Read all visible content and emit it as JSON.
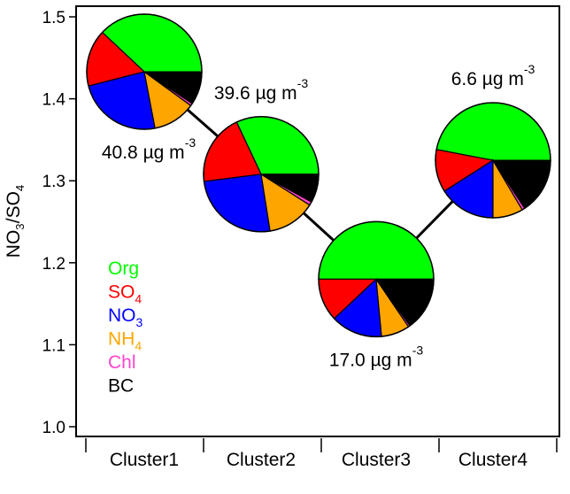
{
  "chart_data": {
    "type": "scatter",
    "subtype": "line-with-pie-markers",
    "ylabel": "NO3/SO4",
    "ylabel_parts": {
      "a": "NO",
      "a_sub": "3",
      "b": "/SO",
      "b_sub": "4"
    },
    "ylim": [
      1.0,
      1.5
    ],
    "yticks": [
      "1.0",
      "1.1",
      "1.2",
      "1.3",
      "1.4",
      "1.5"
    ],
    "categories": [
      "Cluster1",
      "Cluster2",
      "Cluster3",
      "Cluster4"
    ],
    "ratio_values": [
      1.433,
      1.308,
      1.18,
      1.325
    ],
    "grid": false,
    "legend_placement": "left-middle",
    "components": [
      {
        "name": "Org",
        "sub": "",
        "color": "#00ff00"
      },
      {
        "name": "SO",
        "sub": "4",
        "color": "#ff0000"
      },
      {
        "name": "NO",
        "sub": "3",
        "color": "#0000ff"
      },
      {
        "name": "NH",
        "sub": "4",
        "color": "#ffa500"
      },
      {
        "name": "Chl",
        "sub": "",
        "color": "#ff44cc"
      },
      {
        "name": "BC",
        "sub": "",
        "color": "#000000"
      }
    ],
    "pie_fractions": [
      [
        0.38,
        0.16,
        0.24,
        0.12,
        0.007,
        0.093
      ],
      [
        0.32,
        0.2,
        0.255,
        0.135,
        0.01,
        0.08
      ],
      [
        0.5,
        0.12,
        0.145,
        0.08,
        0.005,
        0.15
      ],
      [
        0.47,
        0.12,
        0.16,
        0.085,
        0.008,
        0.157
      ]
    ],
    "mass_labels": [
      {
        "value": "40.8 µg m",
        "sup": "-3",
        "position": "below"
      },
      {
        "value": "39.6 µg m",
        "sup": "-3",
        "position": "above"
      },
      {
        "value": "17.0 µg m",
        "sup": "-3",
        "position": "below"
      },
      {
        "value": "6.6 µg m",
        "sup": "-3",
        "position": "above"
      }
    ]
  }
}
